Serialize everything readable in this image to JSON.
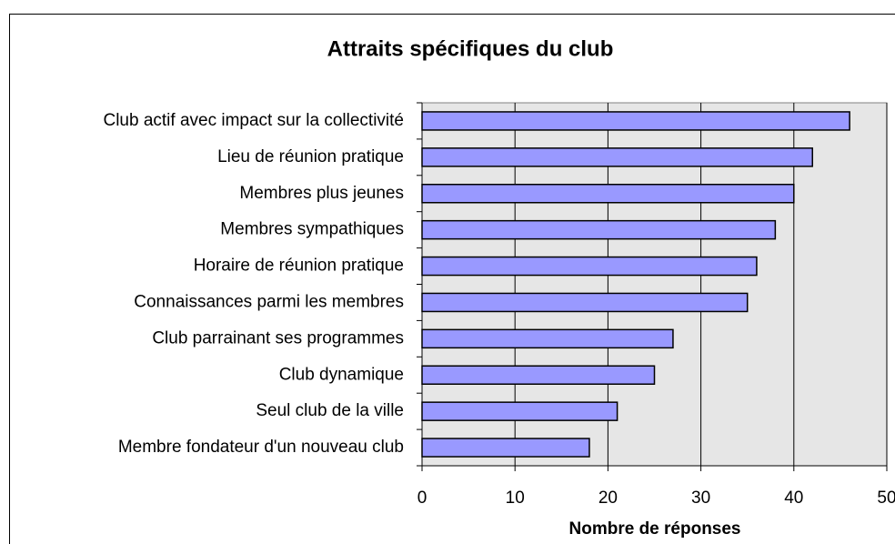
{
  "chart_data": {
    "type": "barh",
    "title": "Attraits spécifiques du club",
    "xlabel": "Nombre de réponses",
    "categories": [
      "Club actif avec impact sur la collectivité",
      "Lieu de réunion pratique",
      "Membres plus jeunes",
      "Membres sympathiques",
      "Horaire de réunion pratique",
      "Connaissances parmi les membres",
      "Club parrainant ses programmes",
      "Club dynamique",
      "Seul club de la ville",
      "Membre fondateur d'un nouveau club"
    ],
    "values": [
      46,
      42,
      40,
      38,
      36,
      35,
      27,
      25,
      21,
      18
    ],
    "color": "#9999ff",
    "xlim": [
      0,
      50
    ],
    "xticks": [
      0,
      10,
      20,
      30,
      40,
      50
    ],
    "grid": true
  }
}
